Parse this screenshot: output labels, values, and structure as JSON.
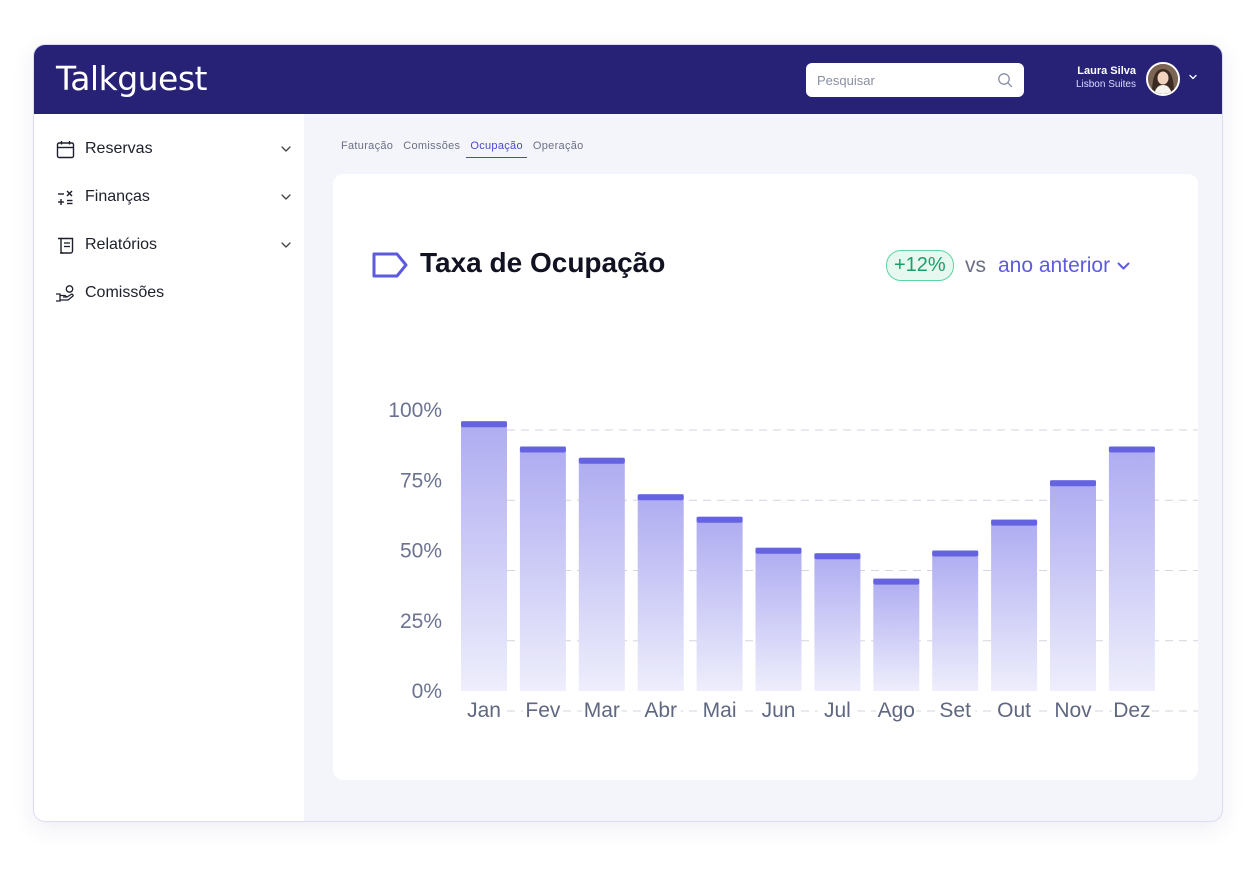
{
  "header": {
    "logo": "Talkguest",
    "search_placeholder": "Pesquisar",
    "user_name": "Laura Silva",
    "user_org": "Lisbon Suites"
  },
  "sidebar": {
    "items": [
      {
        "label": "Reservas",
        "icon": "calendar-icon"
      },
      {
        "label": "Finanças",
        "icon": "calculator-icon"
      },
      {
        "label": "Relatórios",
        "icon": "scroll-icon"
      },
      {
        "label": "Comissões",
        "icon": "hand-coin-icon"
      }
    ]
  },
  "tabs": [
    {
      "label": "Faturação",
      "active": false
    },
    {
      "label": "Comissões",
      "active": false
    },
    {
      "label": "Ocupação",
      "active": true
    },
    {
      "label": "Operação",
      "active": false
    }
  ],
  "card": {
    "title": "Taxa de Ocupação",
    "badge": "+12%",
    "vs": "vs",
    "period": "ano anterior"
  },
  "colors": {
    "header": "#272276",
    "accent": "#5e5ae0",
    "bar_top": "#6563e0",
    "badge_green": "#18a06a"
  },
  "chart_data": {
    "type": "bar",
    "categories": [
      "Jan",
      "Fev",
      "Mar",
      "Abr",
      "Mai",
      "Jun",
      "Jul",
      "Ago",
      "Set",
      "Out",
      "Nov",
      "Dez"
    ],
    "values": [
      96,
      87,
      83,
      70,
      62,
      51,
      49,
      40,
      50,
      61,
      75,
      87
    ],
    "y_ticks": [
      "0%",
      "25%",
      "50%",
      "75%",
      "100%"
    ],
    "ylim": [
      0,
      100
    ],
    "grid": "dashed"
  }
}
